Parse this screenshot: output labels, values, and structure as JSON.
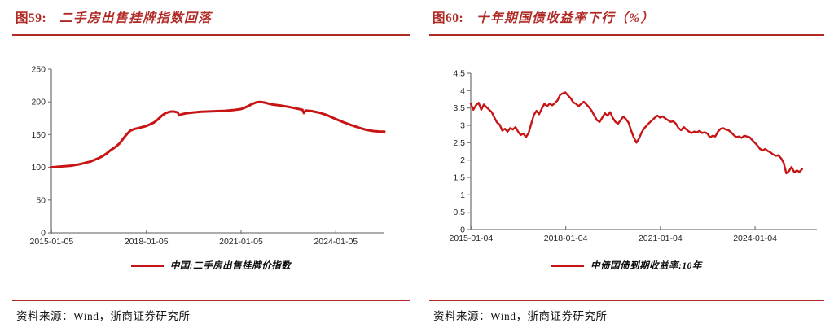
{
  "colors": {
    "accent_red": "#b02a26",
    "line_red": "#c81414",
    "axis_gray": "#7a7a7a",
    "tick_label": "#262626",
    "text_dark": "#141414"
  },
  "figures": [
    {
      "label": "图59:",
      "title": "二手房出售挂牌指数回落",
      "legend": "中国:二手房出售挂牌价指数",
      "source": "资料来源：Wind，浙商证券研究所"
    },
    {
      "label": "图60:",
      "title": "十年期国债收益率下行（%）",
      "legend": "中债国债到期收益率:10年",
      "source": "资料来源：Wind，浙商证券研究所"
    }
  ],
  "chart_data": [
    {
      "type": "line",
      "title": "二手房出售挂牌指数回落",
      "xlabel": "",
      "ylabel": "",
      "xlim": [
        2015.0,
        2025.55
      ],
      "ylim": [
        0,
        250
      ],
      "grid": false,
      "legend_position": "bottom",
      "line_width": 3,
      "y_ticks": [
        {
          "v": 0,
          "label": "0"
        },
        {
          "v": 50,
          "label": "50"
        },
        {
          "v": 100,
          "label": "100"
        },
        {
          "v": 150,
          "label": "150"
        },
        {
          "v": 200,
          "label": "200"
        },
        {
          "v": 250,
          "label": "250"
        }
      ],
      "x_ticks": [
        {
          "v": 2015.01,
          "label": "2015-01-05"
        },
        {
          "v": 2018.01,
          "label": "2018-01-05"
        },
        {
          "v": 2021.01,
          "label": "2021-01-05"
        },
        {
          "v": 2024.01,
          "label": "2024-01-05"
        }
      ],
      "series": [
        {
          "name": "中国:二手房出售挂牌价指数",
          "x": [
            2015.0,
            2015.12,
            2015.25,
            2015.37,
            2015.5,
            2015.62,
            2015.75,
            2015.87,
            2016.0,
            2016.12,
            2016.25,
            2016.37,
            2016.5,
            2016.62,
            2016.75,
            2016.87,
            2017.0,
            2017.08,
            2017.17,
            2017.25,
            2017.33,
            2017.42,
            2017.5,
            2017.62,
            2017.75,
            2017.87,
            2018.0,
            2018.12,
            2018.25,
            2018.37,
            2018.5,
            2018.62,
            2018.75,
            2018.87,
            2019.0,
            2019.05,
            2019.12,
            2019.25,
            2019.5,
            2019.75,
            2020.0,
            2020.25,
            2020.5,
            2020.75,
            2021.0,
            2021.12,
            2021.25,
            2021.37,
            2021.5,
            2021.62,
            2021.75,
            2021.87,
            2022.0,
            2022.25,
            2022.5,
            2022.75,
            2022.95,
            2023.0,
            2023.06,
            2023.25,
            2023.5,
            2023.75,
            2024.0,
            2024.25,
            2024.5,
            2024.75,
            2025.0,
            2025.2,
            2025.4,
            2025.55
          ],
          "y": [
            100,
            100.5,
            101,
            101.5,
            102,
            102.5,
            103.5,
            104.5,
            106,
            107.5,
            109,
            111.5,
            114,
            117,
            121,
            126,
            130,
            133,
            137,
            142,
            147,
            152,
            156,
            158.5,
            160,
            161.5,
            163,
            165.5,
            168.5,
            173,
            179,
            183,
            185,
            185.5,
            184,
            179.5,
            181,
            182.5,
            184,
            185,
            185.5,
            186,
            186.5,
            187.5,
            189,
            191,
            194,
            197,
            199.5,
            200,
            199,
            197.5,
            196,
            194.5,
            192.5,
            190,
            188,
            183,
            187,
            186,
            183.5,
            179.5,
            174,
            169,
            164.5,
            160.5,
            157,
            155.5,
            154.5,
            154.5
          ]
        }
      ]
    },
    {
      "type": "line",
      "title": "十年期国债收益率下行（%）",
      "xlabel": "",
      "ylabel": "",
      "xlim": [
        2015.0,
        2025.97
      ],
      "ylim": [
        0,
        4.5
      ],
      "grid": false,
      "legend_position": "bottom",
      "line_width": 2.4,
      "y_ticks": [
        {
          "v": 0,
          "label": "0"
        },
        {
          "v": 0.5,
          "label": "0.5"
        },
        {
          "v": 1,
          "label": "1"
        },
        {
          "v": 1.5,
          "label": "1.5"
        },
        {
          "v": 2,
          "label": "2"
        },
        {
          "v": 2.5,
          "label": "2.5"
        },
        {
          "v": 3,
          "label": "3"
        },
        {
          "v": 3.5,
          "label": "3.5"
        },
        {
          "v": 4,
          "label": "4"
        },
        {
          "v": 4.5,
          "label": "4.5"
        }
      ],
      "x_ticks": [
        {
          "v": 2015.01,
          "label": "2015-01-04"
        },
        {
          "v": 2018.01,
          "label": "2018-01-04"
        },
        {
          "v": 2021.01,
          "label": "2021-01-04"
        },
        {
          "v": 2024.01,
          "label": "2024-01-04"
        }
      ],
      "series": [
        {
          "name": "中债国债到期收益率:10年",
          "x_start": 2015.0,
          "x_step": 0.083333,
          "y": [
            3.62,
            3.45,
            3.58,
            3.65,
            3.45,
            3.6,
            3.52,
            3.45,
            3.38,
            3.22,
            3.08,
            3.02,
            2.85,
            2.9,
            2.82,
            2.92,
            2.88,
            2.95,
            2.82,
            2.72,
            2.76,
            2.66,
            2.78,
            3.05,
            3.3,
            3.42,
            3.32,
            3.48,
            3.62,
            3.55,
            3.62,
            3.58,
            3.64,
            3.72,
            3.88,
            3.92,
            3.95,
            3.86,
            3.78,
            3.66,
            3.62,
            3.55,
            3.62,
            3.68,
            3.6,
            3.52,
            3.42,
            3.28,
            3.15,
            3.1,
            3.22,
            3.35,
            3.28,
            3.38,
            3.22,
            3.1,
            3.05,
            3.15,
            3.25,
            3.18,
            3.08,
            2.85,
            2.65,
            2.5,
            2.62,
            2.8,
            2.92,
            3.0,
            3.08,
            3.15,
            3.22,
            3.28,
            3.22,
            3.26,
            3.2,
            3.15,
            3.1,
            3.12,
            3.05,
            2.92,
            2.86,
            2.95,
            2.88,
            2.82,
            2.78,
            2.82,
            2.8,
            2.84,
            2.78,
            2.8,
            2.76,
            2.65,
            2.7,
            2.68,
            2.82,
            2.9,
            2.92,
            2.88,
            2.86,
            2.8,
            2.72,
            2.66,
            2.68,
            2.64,
            2.7,
            2.68,
            2.66,
            2.58,
            2.5,
            2.42,
            2.32,
            2.28,
            2.32,
            2.26,
            2.22,
            2.16,
            2.12,
            2.14,
            2.05,
            1.92,
            1.62,
            1.68,
            1.8,
            1.65,
            1.7,
            1.66,
            1.74
          ]
        }
      ]
    }
  ]
}
